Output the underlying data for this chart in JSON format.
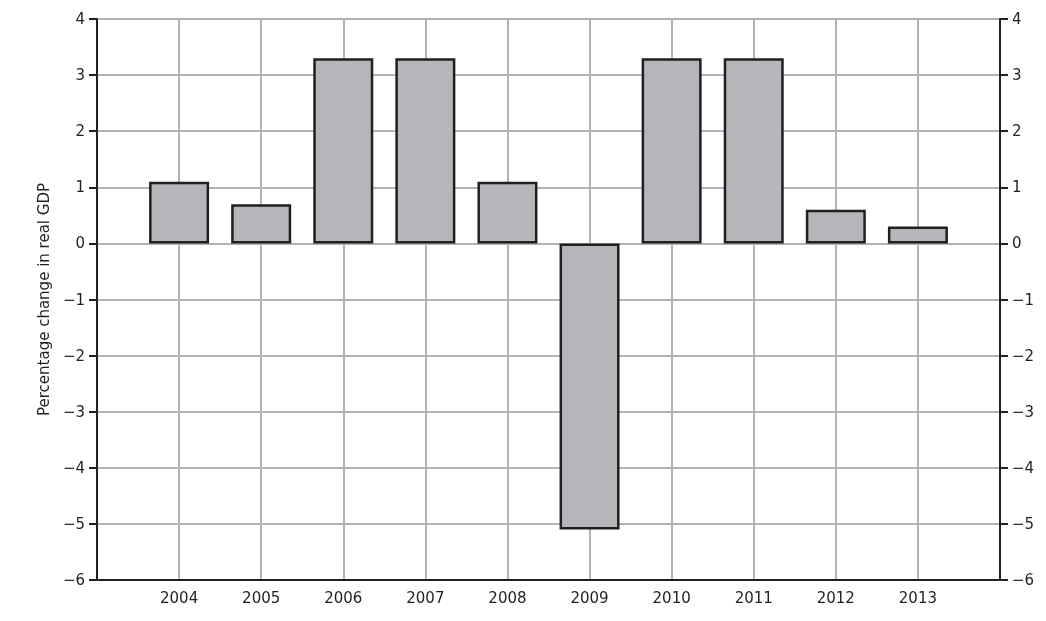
{
  "chart_data": {
    "type": "bar",
    "ylabel": "Percentage change in real GDP",
    "categories": [
      "2004",
      "2005",
      "2006",
      "2007",
      "2008",
      "2009",
      "2010",
      "2011",
      "2012",
      "2013"
    ],
    "values": [
      1.1,
      0.7,
      3.3,
      3.3,
      1.1,
      -5.1,
      3.3,
      3.3,
      0.6,
      0.3
    ],
    "color": "#b5b6b9",
    "ylim": [
      -6,
      4
    ],
    "yticks": [
      {
        "value": -6,
        "label": "−6"
      },
      {
        "value": -5,
        "label": "−5"
      },
      {
        "value": -4,
        "label": "−4"
      },
      {
        "value": -3,
        "label": "−3"
      },
      {
        "value": -2,
        "label": "−2"
      },
      {
        "value": -1,
        "label": "−1"
      },
      0,
      1,
      2,
      3,
      4
    ],
    "y2lim": [
      -6,
      4
    ],
    "y2ticks": [
      {
        "value": -6,
        "label": "−6"
      },
      {
        "value": -5,
        "label": "−5"
      },
      {
        "value": -4,
        "label": "−4"
      },
      {
        "value": -3,
        "label": "−3"
      },
      {
        "value": -2,
        "label": "−2"
      },
      {
        "value": -1,
        "label": "−1"
      },
      0,
      1,
      2,
      3,
      4
    ],
    "grid": true
  }
}
